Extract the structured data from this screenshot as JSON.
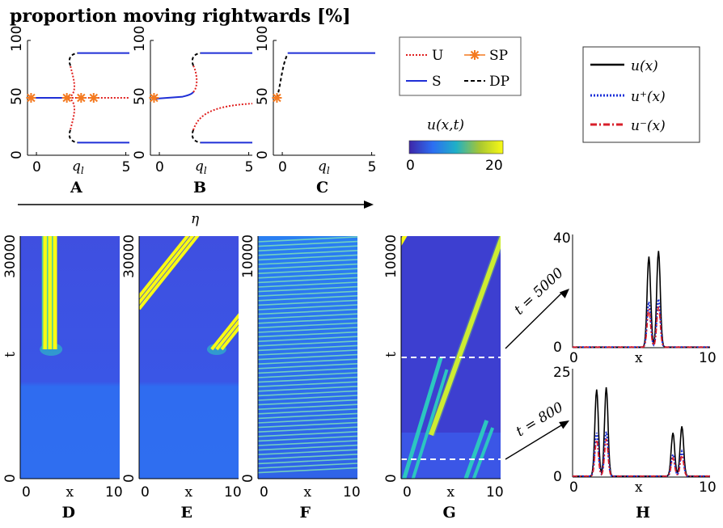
{
  "title": "proportion moving rightwards [%]",
  "eta_label": "η",
  "legend_branches": {
    "U": "U",
    "S": "S",
    "SP": "SP",
    "DP": "DP"
  },
  "colorbar": {
    "title": "u(x,t)",
    "min_label": "0",
    "max_label": "20",
    "min": 0,
    "max": 20
  },
  "legend_u": {
    "u": "u(x)",
    "u_plus": "u⁺(x)",
    "u_minus": "u⁻(x)"
  },
  "colors": {
    "stable": "#1f2fd6",
    "unstable": "#e0201f",
    "point": "#f47a20",
    "dp": "#000000",
    "u_minus": "#d81f2a",
    "u_plus": "#1a2fd8"
  },
  "bifurcation": {
    "xlabel": "q_l",
    "x_ticks": [
      "0",
      "5"
    ],
    "y_ticks": [
      "0",
      "50",
      "100"
    ],
    "xlim": [
      -0.5,
      5.2
    ],
    "ylim": [
      0,
      100
    ],
    "panels": [
      {
        "letter": "A",
        "sp_q": [
          -0.3,
          1.7,
          2.5,
          3.2
        ],
        "bif_q": 1.8
      },
      {
        "letter": "B",
        "sp_q": [
          -0.3
        ],
        "bif_q": 1.8
      },
      {
        "letter": "C",
        "sp_q": [
          -0.3
        ],
        "bif_q": 0.1
      }
    ]
  },
  "heatmaps": [
    {
      "letter": "D",
      "xlabel": "x",
      "ylabel": "t",
      "x_ticks": [
        "0",
        "10"
      ],
      "y_ticks": [
        "0",
        "30000"
      ],
      "xlim": [
        0,
        10
      ],
      "ylim": [
        0,
        30000
      ]
    },
    {
      "letter": "E",
      "xlabel": "x",
      "ylabel": "",
      "x_ticks": [
        "0",
        "10"
      ],
      "y_ticks": [
        "0",
        "30000"
      ],
      "xlim": [
        0,
        10
      ],
      "ylim": [
        0,
        30000
      ]
    },
    {
      "letter": "F",
      "xlabel": "x",
      "ylabel": "",
      "x_ticks": [
        "0",
        "10"
      ],
      "y_ticks": [
        "0",
        "10000"
      ],
      "xlim": [
        0,
        10
      ],
      "ylim": [
        0,
        10000
      ]
    },
    {
      "letter": "G",
      "xlabel": "x",
      "ylabel": "t",
      "x_ticks": [
        "0",
        "10"
      ],
      "y_ticks": [
        "0",
        "10000"
      ],
      "xlim": [
        0,
        10
      ],
      "ylim": [
        0,
        10000
      ],
      "dashed_t": [
        5000,
        800
      ]
    }
  ],
  "profiles": {
    "letter": "H",
    "xlabel": "x",
    "plots": [
      {
        "time_label": "t = 5000",
        "y_ticks": [
          "0",
          "40"
        ],
        "ylim": [
          0,
          40
        ],
        "x_ticks": [
          "0",
          "10"
        ],
        "peaks": [
          {
            "x": 5.55,
            "u": 32
          },
          {
            "x": 6.25,
            "u": 34
          }
        ]
      },
      {
        "time_label": "t = 800",
        "y_ticks": [
          "0",
          "25"
        ],
        "ylim": [
          0,
          25
        ],
        "x_ticks": [
          "0",
          "10"
        ],
        "peaks": [
          {
            "x": 1.75,
            "u": 20
          },
          {
            "x": 2.45,
            "u": 20.5
          },
          {
            "x": 7.3,
            "u": 10
          },
          {
            "x": 7.95,
            "u": 11.5
          }
        ]
      }
    ]
  }
}
